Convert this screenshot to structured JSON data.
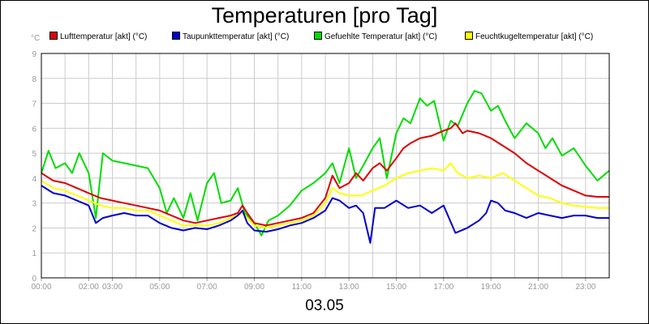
{
  "chart_data": {
    "type": "line",
    "title": "Temperaturen [pro Tag]",
    "unit": "°C",
    "date_label": "03.05",
    "ylim": [
      0,
      9
    ],
    "y_ticks": [
      "0",
      "1",
      "2",
      "3",
      "4",
      "5",
      "6",
      "7",
      "8",
      "9"
    ],
    "xlim": [
      0,
      24
    ],
    "x_ticks": [
      {
        "h": 0,
        "label": "00:00"
      },
      {
        "h": 2,
        "label": "02:00"
      },
      {
        "h": 3,
        "label": "03:00"
      },
      {
        "h": 5,
        "label": "05:00"
      },
      {
        "h": 7,
        "label": "07:00"
      },
      {
        "h": 9,
        "label": "09:00"
      },
      {
        "h": 11,
        "label": "11:00"
      },
      {
        "h": 13,
        "label": "13:00"
      },
      {
        "h": 15,
        "label": "15:00"
      },
      {
        "h": 17,
        "label": "17:00"
      },
      {
        "h": 19,
        "label": "19:00"
      },
      {
        "h": 21,
        "label": "21:00"
      },
      {
        "h": 23,
        "label": "23:00"
      }
    ],
    "grid": true,
    "legend_position": "top",
    "series": [
      {
        "name": "Lufttemperatur [akt] (°C)",
        "color": "#dd0000",
        "points": [
          [
            0,
            4.2
          ],
          [
            0.5,
            3.9
          ],
          [
            1,
            3.8
          ],
          [
            1.5,
            3.6
          ],
          [
            2,
            3.4
          ],
          [
            2.5,
            3.2
          ],
          [
            3,
            3.1
          ],
          [
            3.5,
            3.0
          ],
          [
            4,
            2.9
          ],
          [
            4.5,
            2.8
          ],
          [
            5,
            2.7
          ],
          [
            5.5,
            2.5
          ],
          [
            6,
            2.3
          ],
          [
            6.5,
            2.2
          ],
          [
            7,
            2.3
          ],
          [
            7.5,
            2.4
          ],
          [
            8,
            2.5
          ],
          [
            8.3,
            2.6
          ],
          [
            8.5,
            2.9
          ],
          [
            8.7,
            2.6
          ],
          [
            9,
            2.2
          ],
          [
            9.5,
            2.1
          ],
          [
            10,
            2.2
          ],
          [
            10.5,
            2.3
          ],
          [
            11,
            2.4
          ],
          [
            11.5,
            2.6
          ],
          [
            12,
            3.2
          ],
          [
            12.3,
            4.1
          ],
          [
            12.6,
            3.6
          ],
          [
            13,
            3.8
          ],
          [
            13.3,
            4.2
          ],
          [
            13.6,
            3.9
          ],
          [
            14,
            4.4
          ],
          [
            14.3,
            4.6
          ],
          [
            14.6,
            4.3
          ],
          [
            15,
            4.8
          ],
          [
            15.3,
            5.2
          ],
          [
            15.6,
            5.4
          ],
          [
            16,
            5.6
          ],
          [
            16.5,
            5.7
          ],
          [
            17,
            5.9
          ],
          [
            17.3,
            6.0
          ],
          [
            17.5,
            6.2
          ],
          [
            17.8,
            5.8
          ],
          [
            18,
            5.9
          ],
          [
            18.5,
            5.8
          ],
          [
            19,
            5.6
          ],
          [
            19.5,
            5.3
          ],
          [
            20,
            5.0
          ],
          [
            20.5,
            4.6
          ],
          [
            21,
            4.3
          ],
          [
            21.5,
            4.0
          ],
          [
            22,
            3.7
          ],
          [
            22.5,
            3.5
          ],
          [
            23,
            3.3
          ],
          [
            23.5,
            3.25
          ],
          [
            24,
            3.25
          ]
        ]
      },
      {
        "name": "Taupunkttemperatur [akt] (°C)",
        "color": "#0000cc",
        "points": [
          [
            0,
            3.7
          ],
          [
            0.5,
            3.4
          ],
          [
            1,
            3.3
          ],
          [
            1.5,
            3.1
          ],
          [
            2,
            2.9
          ],
          [
            2.3,
            2.2
          ],
          [
            2.6,
            2.4
          ],
          [
            3,
            2.5
          ],
          [
            3.5,
            2.6
          ],
          [
            4,
            2.5
          ],
          [
            4.5,
            2.5
          ],
          [
            5,
            2.2
          ],
          [
            5.5,
            2.0
          ],
          [
            6,
            1.9
          ],
          [
            6.5,
            2.0
          ],
          [
            7,
            1.95
          ],
          [
            7.5,
            2.1
          ],
          [
            8,
            2.3
          ],
          [
            8.3,
            2.5
          ],
          [
            8.5,
            2.7
          ],
          [
            8.7,
            2.2
          ],
          [
            9,
            1.9
          ],
          [
            9.5,
            1.85
          ],
          [
            10,
            1.95
          ],
          [
            10.5,
            2.1
          ],
          [
            11,
            2.2
          ],
          [
            11.5,
            2.4
          ],
          [
            12,
            2.7
          ],
          [
            12.3,
            3.2
          ],
          [
            12.6,
            3.1
          ],
          [
            13,
            2.8
          ],
          [
            13.3,
            2.9
          ],
          [
            13.6,
            2.6
          ],
          [
            13.9,
            1.4
          ],
          [
            14.1,
            2.8
          ],
          [
            14.5,
            2.8
          ],
          [
            15,
            3.1
          ],
          [
            15.5,
            2.8
          ],
          [
            16,
            2.9
          ],
          [
            16.5,
            2.6
          ],
          [
            17,
            2.9
          ],
          [
            17.5,
            1.8
          ],
          [
            18,
            2.0
          ],
          [
            18.5,
            2.3
          ],
          [
            18.8,
            2.6
          ],
          [
            19,
            3.1
          ],
          [
            19.3,
            3.0
          ],
          [
            19.6,
            2.7
          ],
          [
            20,
            2.6
          ],
          [
            20.5,
            2.4
          ],
          [
            21,
            2.6
          ],
          [
            21.5,
            2.5
          ],
          [
            22,
            2.4
          ],
          [
            22.5,
            2.5
          ],
          [
            23,
            2.5
          ],
          [
            23.5,
            2.4
          ],
          [
            24,
            2.4
          ]
        ]
      },
      {
        "name": "Gefuehlte Temperatur [akt] (°C)",
        "color": "#00dd00",
        "points": [
          [
            0,
            4.2
          ],
          [
            0.3,
            5.1
          ],
          [
            0.6,
            4.4
          ],
          [
            1,
            4.6
          ],
          [
            1.3,
            4.2
          ],
          [
            1.6,
            5.0
          ],
          [
            2,
            4.2
          ],
          [
            2.3,
            2.4
          ],
          [
            2.6,
            5.0
          ],
          [
            3,
            4.7
          ],
          [
            3.5,
            4.6
          ],
          [
            4,
            4.5
          ],
          [
            4.5,
            4.4
          ],
          [
            5,
            3.6
          ],
          [
            5.3,
            2.6
          ],
          [
            5.6,
            3.2
          ],
          [
            6,
            2.4
          ],
          [
            6.3,
            3.4
          ],
          [
            6.6,
            2.3
          ],
          [
            7,
            3.8
          ],
          [
            7.3,
            4.2
          ],
          [
            7.6,
            3.0
          ],
          [
            8,
            3.1
          ],
          [
            8.3,
            3.6
          ],
          [
            8.6,
            2.6
          ],
          [
            9,
            2.2
          ],
          [
            9.3,
            1.7
          ],
          [
            9.6,
            2.3
          ],
          [
            10,
            2.5
          ],
          [
            10.5,
            2.9
          ],
          [
            11,
            3.5
          ],
          [
            11.5,
            3.8
          ],
          [
            12,
            4.2
          ],
          [
            12.3,
            4.6
          ],
          [
            12.6,
            3.8
          ],
          [
            13,
            5.2
          ],
          [
            13.3,
            4.0
          ],
          [
            13.6,
            4.5
          ],
          [
            14,
            5.2
          ],
          [
            14.3,
            5.6
          ],
          [
            14.6,
            4.0
          ],
          [
            15,
            5.8
          ],
          [
            15.3,
            6.4
          ],
          [
            15.6,
            6.2
          ],
          [
            16,
            7.2
          ],
          [
            16.3,
            6.9
          ],
          [
            16.6,
            7.1
          ],
          [
            17,
            5.5
          ],
          [
            17.3,
            6.3
          ],
          [
            17.6,
            6.1
          ],
          [
            18,
            7.0
          ],
          [
            18.3,
            7.5
          ],
          [
            18.6,
            7.4
          ],
          [
            19,
            6.7
          ],
          [
            19.3,
            6.9
          ],
          [
            19.6,
            6.3
          ],
          [
            20,
            5.6
          ],
          [
            20.5,
            6.2
          ],
          [
            21,
            5.8
          ],
          [
            21.3,
            5.2
          ],
          [
            21.6,
            5.6
          ],
          [
            22,
            4.9
          ],
          [
            22.5,
            5.2
          ],
          [
            23,
            4.5
          ],
          [
            23.5,
            3.9
          ],
          [
            24,
            4.3
          ]
        ]
      },
      {
        "name": "Feuchtkugeltemperatur [akt] (°C)",
        "color": "#ffff00",
        "points": [
          [
            0,
            3.9
          ],
          [
            0.5,
            3.6
          ],
          [
            1,
            3.5
          ],
          [
            1.5,
            3.3
          ],
          [
            2,
            3.1
          ],
          [
            2.5,
            2.9
          ],
          [
            3,
            2.8
          ],
          [
            3.5,
            2.8
          ],
          [
            4,
            2.7
          ],
          [
            4.5,
            2.7
          ],
          [
            5,
            2.5
          ],
          [
            5.5,
            2.3
          ],
          [
            6,
            2.1
          ],
          [
            6.5,
            2.1
          ],
          [
            7,
            2.1
          ],
          [
            7.5,
            2.2
          ],
          [
            8,
            2.4
          ],
          [
            8.5,
            2.6
          ],
          [
            8.7,
            2.4
          ],
          [
            9,
            2.1
          ],
          [
            9.5,
            2.0
          ],
          [
            10,
            2.1
          ],
          [
            10.5,
            2.2
          ],
          [
            11,
            2.3
          ],
          [
            11.5,
            2.5
          ],
          [
            12,
            3.0
          ],
          [
            12.3,
            3.6
          ],
          [
            12.6,
            3.4
          ],
          [
            13,
            3.3
          ],
          [
            13.5,
            3.3
          ],
          [
            14,
            3.5
          ],
          [
            14.5,
            3.7
          ],
          [
            15,
            4.0
          ],
          [
            15.5,
            4.2
          ],
          [
            16,
            4.3
          ],
          [
            16.5,
            4.4
          ],
          [
            17,
            4.3
          ],
          [
            17.3,
            4.6
          ],
          [
            17.6,
            4.2
          ],
          [
            18,
            4.0
          ],
          [
            18.5,
            4.1
          ],
          [
            19,
            4.0
          ],
          [
            19.5,
            4.2
          ],
          [
            20,
            3.9
          ],
          [
            20.5,
            3.6
          ],
          [
            21,
            3.3
          ],
          [
            21.5,
            3.2
          ],
          [
            22,
            3.0
          ],
          [
            22.5,
            2.9
          ],
          [
            23,
            2.85
          ],
          [
            23.5,
            2.8
          ],
          [
            24,
            2.8
          ]
        ]
      }
    ]
  }
}
